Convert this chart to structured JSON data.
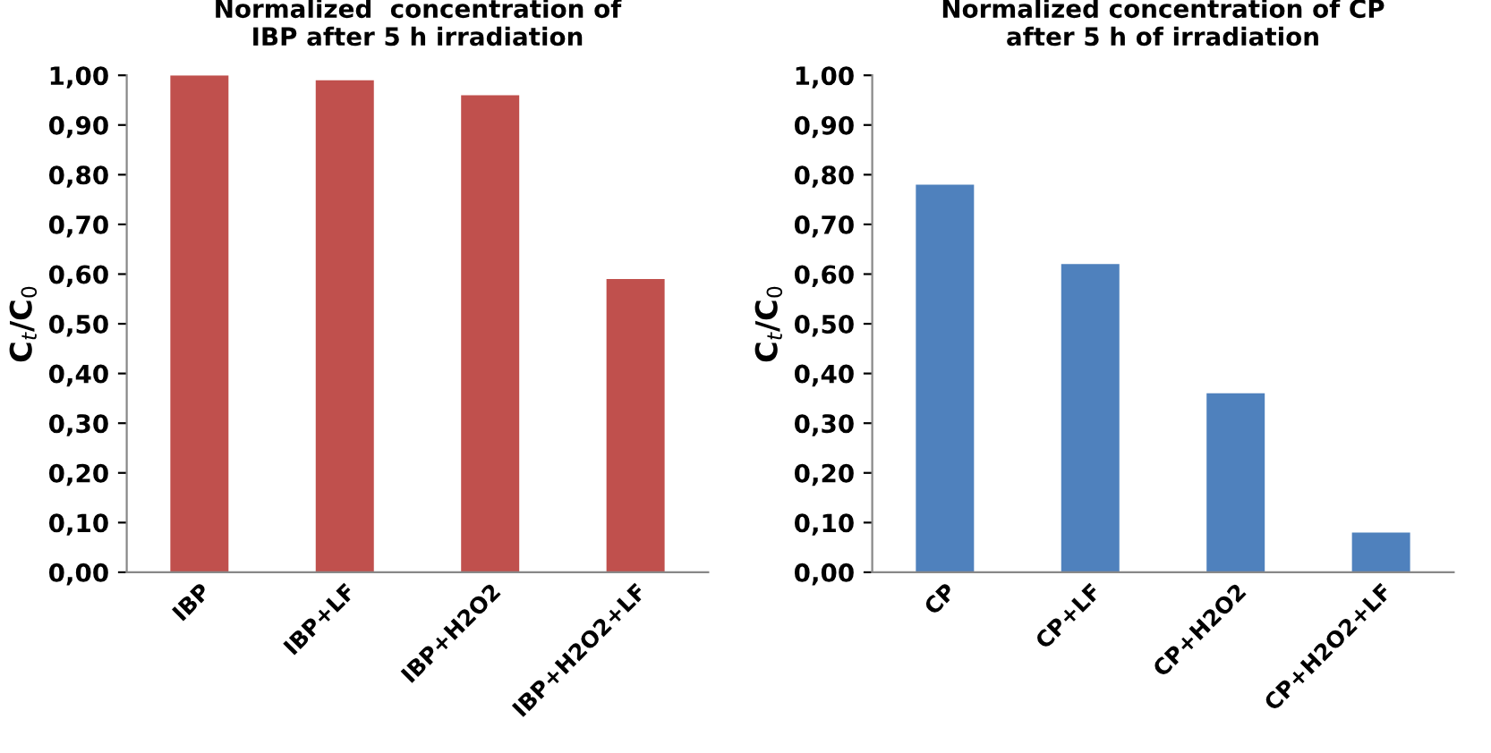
{
  "chart_data": [
    {
      "type": "bar",
      "title": "Normalized  concentration of\nIBP after 5 h irradiation",
      "ylabel": "C$_{t}$/C$_{0}$",
      "categories": [
        "IBP",
        "IBP+LF",
        "IBP+H2O2",
        "IBP+H2O2+LF"
      ],
      "values": [
        1.0,
        0.99,
        0.96,
        0.59
      ],
      "color": "#c0504d",
      "ylim": [
        0,
        1
      ],
      "yticks": [
        {
          "value": 0,
          "label": "0,00"
        },
        {
          "value": 0.1,
          "label": "0,10"
        },
        {
          "value": 0.2,
          "label": "0,20"
        },
        {
          "value": 0.3,
          "label": "0,30"
        },
        {
          "value": 0.4,
          "label": "0,40"
        },
        {
          "value": 0.5,
          "label": "0,50"
        },
        {
          "value": 0.6,
          "label": "0,60"
        },
        {
          "value": 0.7,
          "label": "0,70"
        },
        {
          "value": 0.8,
          "label": "0,80"
        },
        {
          "value": 0.9,
          "label": "0,90"
        },
        {
          "value": 1.0,
          "label": "1,00"
        }
      ],
      "grid": false
    },
    {
      "type": "bar",
      "title": "Normalized concentration of CP\nafter 5 h of irradiation",
      "ylabel": "C$_{t}$/C$_{0}$",
      "categories": [
        "CP",
        "CP+LF",
        "CP+H2O2",
        "CP+H2O2+LF"
      ],
      "values": [
        0.78,
        0.62,
        0.36,
        0.08
      ],
      "color": "#4f81bd",
      "ylim": [
        0,
        1
      ],
      "yticks": [
        {
          "value": 0,
          "label": "0,00"
        },
        {
          "value": 0.1,
          "label": "0,10"
        },
        {
          "value": 0.2,
          "label": "0,20"
        },
        {
          "value": 0.3,
          "label": "0,30"
        },
        {
          "value": 0.4,
          "label": "0,40"
        },
        {
          "value": 0.5,
          "label": "0,50"
        },
        {
          "value": 0.6,
          "label": "0,60"
        },
        {
          "value": 0.7,
          "label": "0,70"
        },
        {
          "value": 0.8,
          "label": "0,80"
        },
        {
          "value": 0.9,
          "label": "0,90"
        },
        {
          "value": 1.0,
          "label": "1,00"
        }
      ],
      "grid": false
    }
  ]
}
